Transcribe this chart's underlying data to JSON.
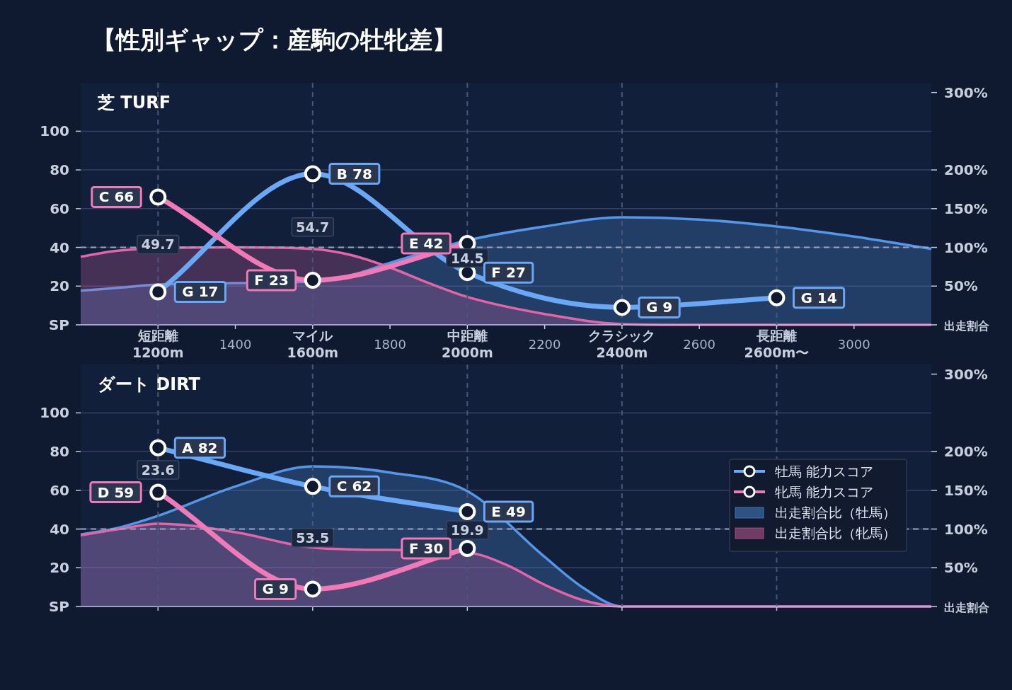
{
  "chart_data": [
    {
      "type": "line",
      "title": "【性別ギャップ：産駒の牡牝差】",
      "subtitle": "芝 TURF",
      "xlim": [
        1000,
        3200
      ],
      "xticks": [
        {
          "value": 1200,
          "label": "短距離\n1200m"
        },
        1400,
        {
          "value": 1600,
          "label": "マイル\n1600m"
        },
        1800,
        {
          "value": 2000,
          "label": "中距離\n2000m"
        },
        2200,
        {
          "value": 2400,
          "label": "クラシック\n2400m"
        },
        2600,
        {
          "value": 2800,
          "label": "長距離\n2600m〜"
        },
        3000
      ],
      "ylim": [
        0,
        125
      ],
      "yticks": [
        {
          "value": 0,
          "label": "SP"
        },
        20,
        40,
        60,
        80,
        100
      ],
      "y2lim": [
        0,
        312.5
      ],
      "y2ticks": [
        {
          "value": 0,
          "label": "出走割合"
        },
        {
          "value": 50,
          "label": "50%"
        },
        {
          "value": 100,
          "label": "100%"
        },
        {
          "value": 150,
          "label": "150%"
        },
        {
          "value": 200,
          "label": "200%"
        },
        {
          "value": 300,
          "label": "300%"
        }
      ],
      "ref_lines": [
        {
          "axis": "y2",
          "value": 100,
          "label": null,
          "color": "#9aa6bd",
          "line_style": "dashed"
        }
      ],
      "grid": true,
      "legend": false,
      "annotations": [
        "49.7",
        "54.7",
        "14.5"
      ],
      "series": [
        {
          "type": "area",
          "axis": "y2",
          "color": "#5596e6",
          "x": [
            1000,
            1100,
            1200,
            1400,
            1600,
            1700,
            1800,
            2000,
            2200,
            2400,
            2600,
            2800,
            3000,
            3200
          ],
          "values": [
            44,
            48,
            52,
            54,
            56,
            64,
            80,
            109,
            127,
            139,
            136,
            127,
            114,
            98
          ]
        },
        {
          "type": "area",
          "axis": "y2",
          "color": "#e066a8",
          "x": [
            1000,
            1100,
            1400,
            1600,
            1700,
            1800,
            1900,
            2000,
            2200,
            2400,
            2600,
            2800,
            3000,
            3200
          ],
          "values": [
            88,
            96,
            100,
            98,
            90,
            74,
            54,
            36,
            14,
            1,
            0,
            0,
            0,
            0
          ]
        },
        {
          "type": "line",
          "marker": "circle",
          "color": "#6aa8f5",
          "x": [
            1200,
            1600,
            2000,
            2400,
            2800
          ],
          "values": [
            17,
            78,
            27,
            9,
            14
          ],
          "value_labels": [
            "G 17",
            "B 78",
            "F 27",
            "G 9",
            "G 14"
          ]
        },
        {
          "type": "line",
          "marker": "circle",
          "color": "#f07ab8",
          "x": [
            1200,
            1600,
            2000
          ],
          "values": [
            66,
            23,
            42
          ],
          "value_labels": [
            "C 66",
            "F 23",
            "E 42"
          ]
        }
      ]
    },
    {
      "type": "line",
      "subtitle": "ダート DIRT",
      "xlim": [
        1000,
        3200
      ],
      "tick_labels": "y",
      "xticks": [
        1200,
        1600,
        2000,
        2400,
        2800
      ],
      "ylim": [
        0,
        125
      ],
      "yticks": [
        {
          "value": 0,
          "label": "SP"
        },
        20,
        40,
        60,
        80,
        100
      ],
      "y2lim": [
        0,
        312.5
      ],
      "y2ticks": [
        {
          "value": 0,
          "label": "出走割合"
        },
        {
          "value": 50,
          "label": "50%"
        },
        {
          "value": 100,
          "label": "100%"
        },
        {
          "value": 150,
          "label": "150%"
        },
        {
          "value": 200,
          "label": "200%"
        },
        {
          "value": 300,
          "label": "300%"
        }
      ],
      "ref_lines": [
        {
          "axis": "y2",
          "value": 100,
          "label": null,
          "color": "#9aa6bd",
          "line_style": "dashed"
        }
      ],
      "grid": true,
      "legend": "right",
      "annotations": [
        "23.6",
        "53.5",
        "19.9"
      ],
      "series": [
        {
          "type": "area",
          "axis": "y2",
          "name": "出走割合比（牡馬）",
          "color": "#5596e6",
          "x": [
            1000,
            1100,
            1200,
            1400,
            1600,
            1800,
            2000,
            2200,
            2300,
            2400,
            2600,
            2800,
            3000,
            3200
          ],
          "values": [
            93,
            102,
            117,
            155,
            181,
            173,
            149,
            64,
            24,
            0,
            0,
            0,
            0,
            0
          ]
        },
        {
          "type": "area",
          "axis": "y2",
          "name": "出走割合比（牝馬）",
          "color": "#e066a8",
          "x": [
            1000,
            1100,
            1200,
            1400,
            1600,
            1800,
            2000,
            2100,
            2200,
            2300,
            2400,
            2600,
            2800,
            3000,
            3200
          ],
          "values": [
            92,
            100,
            107,
            96,
            76,
            73,
            70,
            54,
            28,
            8,
            0,
            0,
            0,
            0,
            0
          ]
        },
        {
          "type": "line",
          "marker": "circle",
          "name": "牡馬 能力スコア",
          "color": "#6aa8f5",
          "x": [
            1200,
            1600,
            2000
          ],
          "values": [
            82,
            62,
            49
          ],
          "value_labels": [
            "A 82",
            "C 62",
            "E 49"
          ]
        },
        {
          "type": "line",
          "marker": "circle",
          "name": "牝馬 能力スコア",
          "color": "#f07ab8",
          "x": [
            1200,
            1600,
            2000
          ],
          "values": [
            59,
            9,
            30
          ],
          "value_labels": [
            "D 59",
            "G 9",
            "F 30"
          ]
        }
      ]
    }
  ]
}
